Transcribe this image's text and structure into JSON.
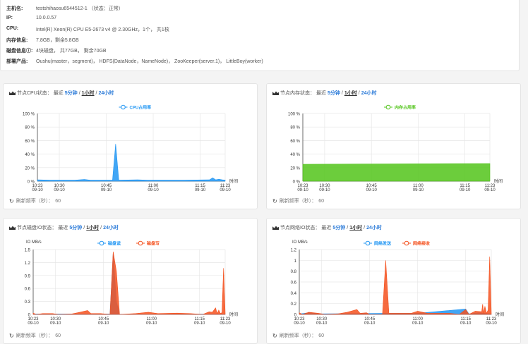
{
  "host_info": {
    "rows": [
      {
        "label": "主机名:",
        "value": "testshihaosu6544512-1 （状态：正常）"
      },
      {
        "label": "IP:",
        "value": "10.0.0.57"
      },
      {
        "label": "CPU:",
        "value": "Intel(R) Xeon(R) CPU E5-2673 v4 @ 2.30GHz，1个， 共1核"
      },
      {
        "label": "内存信息:",
        "value": "7.8GB，剩余5.8GB"
      },
      {
        "label": "磁盘信息ⓘ:",
        "value": "4块磁盘， 共77GB， 剩余70GB"
      },
      {
        "label": "部署产品:",
        "value": "Oushu(master，segment)， HDFS(DataNode，NameNode)， ZooKeeper(server.1)， LittleBoy(worker)"
      }
    ]
  },
  "panels": [
    {
      "title": "节点CPU状态：",
      "recent": "最近",
      "opt1": "5分钟",
      "sep": "/",
      "opt2": "1小时",
      "opt3": "24小时",
      "refresh_label": "刷新频率（秒）：",
      "refresh_value": "60"
    },
    {
      "title": "节点内存状态：",
      "recent": "最近",
      "opt1": "5分钟",
      "sep": "/",
      "opt2": "1小时",
      "opt3": "24小时",
      "refresh_label": "刷新频率（秒）：",
      "refresh_value": "60"
    },
    {
      "title": "节点磁盘IO状态：",
      "recent": "最近",
      "opt1": "5分钟",
      "sep": "/",
      "opt2": "1小时",
      "opt3": "24小时",
      "refresh_label": "刷新频率（秒）：",
      "refresh_value": "60"
    },
    {
      "title": "节点网络IO状态：",
      "recent": "最近",
      "opt1": "5分钟",
      "sep": "/",
      "opt2": "1小时",
      "opt3": "24小时",
      "refresh_label": "刷新频率（秒）：",
      "refresh_value": "60"
    }
  ],
  "chart_data": [
    {
      "type": "area",
      "ylabel": "",
      "xlabel": "时间",
      "ylim": [
        0,
        100
      ],
      "yticks": [
        "0 %",
        "20 %",
        "40 %",
        "60 %",
        "80 %",
        "100 %"
      ],
      "xticks": [
        [
          "10:23",
          "09-10"
        ],
        [
          "10:30",
          "09-10"
        ],
        [
          "10:45",
          "09-10"
        ],
        [
          "11:00",
          "09-10"
        ],
        [
          "11:15",
          "09-10"
        ],
        [
          "11:23",
          "09-10"
        ]
      ],
      "grid": true,
      "legend": "top",
      "series": [
        {
          "name": "CPU占用率",
          "color": "#2196f3",
          "points": [
            [
              "10:23",
              2
            ],
            [
              "10:27",
              1.5
            ],
            [
              "10:35",
              1.5
            ],
            [
              "10:38",
              2.5
            ],
            [
              "10:40",
              1.5
            ],
            [
              "10:47",
              1.5
            ],
            [
              "10:48",
              55
            ],
            [
              "10:49",
              1.5
            ],
            [
              "10:55",
              2
            ],
            [
              "10:58",
              1.5
            ],
            [
              "11:10",
              1.5
            ],
            [
              "11:18",
              2
            ],
            [
              "11:19",
              5
            ],
            [
              "11:20",
              2
            ],
            [
              "11:21",
              3
            ],
            [
              "11:22",
              2
            ],
            [
              "11:23",
              1.5
            ]
          ]
        }
      ]
    },
    {
      "type": "area",
      "ylabel": "",
      "xlabel": "时间",
      "ylim": [
        0,
        100
      ],
      "yticks": [
        "0 %",
        "20 %",
        "40 %",
        "60 %",
        "80 %",
        "100 %"
      ],
      "xticks": [
        [
          "10:23",
          "09-10"
        ],
        [
          "10:30",
          "09-10"
        ],
        [
          "10:45",
          "09-10"
        ],
        [
          "11:00",
          "09-10"
        ],
        [
          "11:15",
          "09-10"
        ],
        [
          "11:23",
          "09-10"
        ]
      ],
      "grid": true,
      "legend": "top",
      "series": [
        {
          "name": "内存占用率",
          "color": "#52c41a",
          "points": [
            [
              "10:23",
              25
            ],
            [
              "10:50",
              25.5
            ],
            [
              "11:23",
              26
            ]
          ]
        }
      ]
    },
    {
      "type": "area",
      "ylabel": "IO MB/s",
      "xlabel": "时间",
      "ylim": [
        0,
        1.5
      ],
      "yticks": [
        "0",
        "0.3",
        "0.6",
        "0.9",
        "1.2",
        "1.5"
      ],
      "xticks": [
        [
          "10:23",
          "09-10"
        ],
        [
          "10:30",
          "09-10"
        ],
        [
          "10:45",
          "09-10"
        ],
        [
          "11:00",
          "09-10"
        ],
        [
          "11:15",
          "09-10"
        ],
        [
          "11:23",
          "09-10"
        ]
      ],
      "grid": true,
      "legend": "top",
      "series": [
        {
          "name": "磁盘读",
          "color": "#2196f3",
          "points": [
            [
              "10:23",
              0.01
            ],
            [
              "10:47",
              0.01
            ],
            [
              "10:48",
              1.42
            ],
            [
              "10:49",
              0.3
            ],
            [
              "10:50",
              0
            ],
            [
              "11:23",
              0.01
            ]
          ]
        },
        {
          "name": "磁盘写",
          "color": "#f4511e",
          "points": [
            [
              "10:23",
              0.03
            ],
            [
              "10:24",
              0
            ],
            [
              "10:26",
              0.02
            ],
            [
              "10:29",
              0.02
            ],
            [
              "10:31",
              0
            ],
            [
              "10:35",
              0.01
            ],
            [
              "10:37",
              0.04
            ],
            [
              "10:40",
              0.09
            ],
            [
              "10:41",
              0.02
            ],
            [
              "10:44",
              0.02
            ],
            [
              "10:47",
              0
            ],
            [
              "10:48",
              1.45
            ],
            [
              "10:49",
              1.0
            ],
            [
              "10:50",
              0
            ],
            [
              "10:55",
              0.02
            ],
            [
              "10:59",
              0.05
            ],
            [
              "11:02",
              0.02
            ],
            [
              "11:08",
              0.03
            ],
            [
              "11:12",
              0.02
            ],
            [
              "11:16",
              0
            ],
            [
              "11:18",
              0.06
            ],
            [
              "11:19",
              0.05
            ],
            [
              "11:20",
              0.15
            ],
            [
              "11:20.5",
              0.02
            ],
            [
              "11:21",
              0.1
            ],
            [
              "11:21.5",
              0.02
            ],
            [
              "11:22",
              0.04
            ],
            [
              "11:22.5",
              1.07
            ],
            [
              "11:23",
              0.02
            ]
          ]
        }
      ]
    },
    {
      "type": "area",
      "ylabel": "IO MB/s",
      "xlabel": "时间",
      "ylim": [
        0,
        1.2
      ],
      "yticks": [
        "0",
        "0.2",
        "0.4",
        "0.6",
        "0.8",
        "1",
        "1.2"
      ],
      "xticks": [
        [
          "10:23",
          "09-10"
        ],
        [
          "10:30",
          "09-10"
        ],
        [
          "10:45",
          "09-10"
        ],
        [
          "11:00",
          "09-10"
        ],
        [
          "11:15",
          "09-10"
        ],
        [
          "11:23",
          "09-10"
        ]
      ],
      "grid": true,
      "legend": "top",
      "series": [
        {
          "name": "网络发送",
          "color": "#2196f3",
          "points": [
            [
              "10:23",
              0.01
            ],
            [
              "10:26",
              0.03
            ],
            [
              "10:30",
              0.01
            ],
            [
              "10:50",
              0.02
            ],
            [
              "11:00",
              0.02
            ],
            [
              "11:15",
              0.1
            ],
            [
              "11:16",
              0.01
            ],
            [
              "11:19",
              0.03
            ],
            [
              "11:23",
              0.01
            ]
          ]
        },
        {
          "name": "网络接收",
          "color": "#f4511e",
          "points": [
            [
              "10:23",
              0.03
            ],
            [
              "10:24",
              0
            ],
            [
              "10:26",
              0.04
            ],
            [
              "10:29",
              0.02
            ],
            [
              "10:31",
              0
            ],
            [
              "10:35",
              0.01
            ],
            [
              "10:38",
              0.04
            ],
            [
              "10:41",
              0.09
            ],
            [
              "10:42",
              0.02
            ],
            [
              "10:44",
              0.03
            ],
            [
              "10:45",
              0
            ],
            [
              "10:49",
              0
            ],
            [
              "10:50",
              1.0
            ],
            [
              "10:51",
              0.02
            ],
            [
              "10:58",
              0.02
            ],
            [
              "11:00",
              0.06
            ],
            [
              "11:03",
              0.02
            ],
            [
              "11:10",
              0.02
            ],
            [
              "11:13",
              0
            ],
            [
              "11:15",
              0.09
            ],
            [
              "11:16",
              0
            ],
            [
              "11:18",
              0.06
            ],
            [
              "11:20",
              0.05
            ],
            [
              "11:20.3",
              0.19
            ],
            [
              "11:20.6",
              0.02
            ],
            [
              "11:21",
              0.15
            ],
            [
              "11:21.5",
              0.02
            ],
            [
              "11:22",
              0.08
            ],
            [
              "11:22.5",
              1.07
            ],
            [
              "11:23",
              0.02
            ]
          ]
        }
      ]
    }
  ]
}
